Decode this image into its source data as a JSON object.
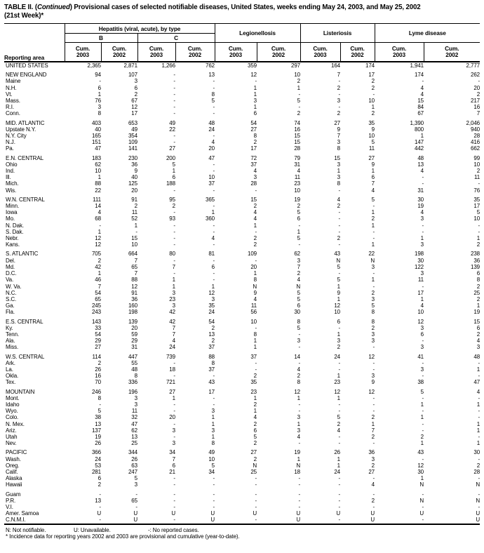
{
  "title": {
    "part1": "TABLE II. (",
    "continued": "Continued",
    "part2": ") Provisional cases of selected notifiable diseases, United States, weeks ending May 24, 2003, and May 25, 2002",
    "line2": "(21st Week)*"
  },
  "header": {
    "reporting_area": "Reporting area",
    "hepatitis_group": "Hepatitis (viral, acute), by type",
    "hep_b": "B",
    "hep_c": "C",
    "legionellosis": "Legionellosis",
    "listeriosis": "Listeriosis",
    "lyme_disease": "Lyme disease",
    "cum_label": "Cum.",
    "years": [
      "2003",
      "2002"
    ]
  },
  "table": {
    "sections": [
      {
        "rows": [
          [
            "UNITED STATES",
            "2,365",
            "2,871",
            "1,266",
            "762",
            "359",
            "297",
            "164",
            "174",
            "1,941",
            "2,777"
          ]
        ]
      },
      {
        "rows": [
          [
            "NEW ENGLAND",
            "94",
            "107",
            "-",
            "13",
            "12",
            "10",
            "7",
            "17",
            "174",
            "262"
          ],
          [
            "Maine",
            "-",
            "3",
            "-",
            "-",
            "-",
            "2",
            "-",
            "2",
            "-",
            "-"
          ],
          [
            "N.H.",
            "6",
            "6",
            "-",
            "-",
            "1",
            "1",
            "2",
            "2",
            "4",
            "20"
          ],
          [
            "Vt.",
            "1",
            "2",
            "-",
            "8",
            "1",
            "-",
            "-",
            "-",
            "4",
            "2"
          ],
          [
            "Mass.",
            "76",
            "67",
            "-",
            "5",
            "3",
            "5",
            "3",
            "10",
            "15",
            "217"
          ],
          [
            "R.I.",
            "3",
            "12",
            "-",
            "-",
            "1",
            "-",
            "-",
            "1",
            "84",
            "16"
          ],
          [
            "Conn.",
            "8",
            "17",
            "-",
            "-",
            "6",
            "2",
            "2",
            "2",
            "67",
            "7"
          ]
        ]
      },
      {
        "rows": [
          [
            "MID. ATLANTIC",
            "403",
            "653",
            "49",
            "48",
            "54",
            "74",
            "27",
            "35",
            "1,390",
            "2,046"
          ],
          [
            "Upstate N.Y.",
            "40",
            "49",
            "22",
            "24",
            "27",
            "16",
            "9",
            "9",
            "800",
            "940"
          ],
          [
            "N.Y. City",
            "165",
            "354",
            "-",
            "-",
            "8",
            "15",
            "7",
            "10",
            "1",
            "28"
          ],
          [
            "N.J.",
            "151",
            "109",
            "-",
            "4",
            "2",
            "15",
            "3",
            "5",
            "147",
            "416"
          ],
          [
            "Pa.",
            "47",
            "141",
            "27",
            "20",
            "17",
            "28",
            "8",
            "11",
            "442",
            "662"
          ]
        ]
      },
      {
        "rows": [
          [
            "E.N. CENTRAL",
            "183",
            "230",
            "200",
            "47",
            "72",
            "79",
            "15",
            "27",
            "48",
            "99"
          ],
          [
            "Ohio",
            "62",
            "36",
            "5",
            "-",
            "37",
            "31",
            "3",
            "9",
            "13",
            "10"
          ],
          [
            "Ind.",
            "10",
            "9",
            "1",
            "-",
            "4",
            "4",
            "1",
            "1",
            "4",
            "2"
          ],
          [
            "Ill.",
            "1",
            "40",
            "6",
            "10",
            "3",
            "11",
            "3",
            "6",
            "-",
            "11"
          ],
          [
            "Mich.",
            "88",
            "125",
            "188",
            "37",
            "28",
            "23",
            "8",
            "7",
            "-",
            "-"
          ],
          [
            "Wis.",
            "22",
            "20",
            "-",
            "-",
            "-",
            "10",
            "-",
            "4",
            "31",
            "76"
          ]
        ]
      },
      {
        "rows": [
          [
            "W.N. CENTRAL",
            "111",
            "91",
            "95",
            "365",
            "15",
            "19",
            "4",
            "5",
            "30",
            "35"
          ],
          [
            "Minn.",
            "14",
            "2",
            "2",
            "-",
            "2",
            "2",
            "2",
            "-",
            "19",
            "17"
          ],
          [
            "Iowa",
            "4",
            "11",
            "-",
            "1",
            "4",
            "5",
            "-",
            "1",
            "4",
            "5"
          ],
          [
            "Mo.",
            "68",
            "52",
            "93",
            "360",
            "4",
            "6",
            "-",
            "2",
            "3",
            "10"
          ],
          [
            "N. Dak.",
            "-",
            "1",
            "-",
            "-",
            "1",
            "-",
            "-",
            "1",
            "-",
            "-"
          ],
          [
            "S. Dak.",
            "1",
            "-",
            "-",
            "-",
            "-",
            "1",
            "-",
            "-",
            "-",
            "-"
          ],
          [
            "Nebr.",
            "12",
            "15",
            "-",
            "4",
            "2",
            "5",
            "2",
            "-",
            "1",
            "1"
          ],
          [
            "Kans.",
            "12",
            "10",
            "-",
            "-",
            "2",
            "-",
            "-",
            "1",
            "3",
            "2"
          ]
        ]
      },
      {
        "rows": [
          [
            "S. ATLANTIC",
            "705",
            "664",
            "80",
            "81",
            "109",
            "62",
            "43",
            "22",
            "198",
            "238"
          ],
          [
            "Del.",
            "2",
            "7",
            "-",
            "-",
            "-",
            "3",
            "N",
            "N",
            "30",
            "36"
          ],
          [
            "Md.",
            "42",
            "65",
            "7",
            "6",
            "20",
            "7",
            "5",
            "3",
            "122",
            "139"
          ],
          [
            "D.C.",
            "1",
            "7",
            "-",
            "-",
            "1",
            "2",
            "-",
            "-",
            "3",
            "6"
          ],
          [
            "Va.",
            "46",
            "88",
            "1",
            "-",
            "8",
            "4",
            "5",
            "1",
            "11",
            "8"
          ],
          [
            "W. Va.",
            "7",
            "12",
            "1",
            "1",
            "N",
            "N",
            "1",
            "-",
            "-",
            "2"
          ],
          [
            "N.C.",
            "54",
            "91",
            "3",
            "12",
            "9",
            "5",
            "9",
            "2",
            "17",
            "25"
          ],
          [
            "S.C.",
            "65",
            "36",
            "23",
            "3",
            "4",
            "5",
            "1",
            "3",
            "1",
            "2"
          ],
          [
            "Ga.",
            "245",
            "160",
            "3",
            "35",
            "11",
            "6",
            "12",
            "5",
            "4",
            "1"
          ],
          [
            "Fla.",
            "243",
            "198",
            "42",
            "24",
            "56",
            "30",
            "10",
            "8",
            "10",
            "19"
          ]
        ]
      },
      {
        "rows": [
          [
            "E.S. CENTRAL",
            "143",
            "139",
            "42",
            "54",
            "10",
            "8",
            "6",
            "8",
            "12",
            "15"
          ],
          [
            "Ky.",
            "33",
            "20",
            "7",
            "2",
            "-",
            "5",
            "-",
            "2",
            "3",
            "6"
          ],
          [
            "Tenn.",
            "54",
            "59",
            "7",
            "13",
            "8",
            "-",
            "1",
            "3",
            "6",
            "2"
          ],
          [
            "Ala.",
            "29",
            "29",
            "4",
            "2",
            "1",
            "3",
            "3",
            "3",
            "-",
            "4"
          ],
          [
            "Miss.",
            "27",
            "31",
            "24",
            "37",
            "1",
            "-",
            "2",
            "-",
            "3",
            "3"
          ]
        ]
      },
      {
        "rows": [
          [
            "W.S. CENTRAL",
            "114",
            "447",
            "739",
            "88",
            "37",
            "14",
            "24",
            "12",
            "41",
            "48"
          ],
          [
            "Ark.",
            "2",
            "55",
            "-",
            "8",
            "-",
            "-",
            "-",
            "-",
            "-",
            "-"
          ],
          [
            "La.",
            "26",
            "48",
            "18",
            "37",
            "-",
            "4",
            "-",
            "-",
            "3",
            "1"
          ],
          [
            "Okla.",
            "16",
            "8",
            "-",
            "-",
            "2",
            "2",
            "1",
            "3",
            "-",
            "-"
          ],
          [
            "Tex.",
            "70",
            "336",
            "721",
            "43",
            "35",
            "8",
            "23",
            "9",
            "38",
            "47"
          ]
        ]
      },
      {
        "rows": [
          [
            "MOUNTAIN",
            "246",
            "196",
            "27",
            "17",
            "23",
            "12",
            "12",
            "12",
            "5",
            "4"
          ],
          [
            "Mont.",
            "8",
            "3",
            "1",
            "-",
            "1",
            "1",
            "1",
            "-",
            "-",
            "-"
          ],
          [
            "Idaho",
            "-",
            "3",
            "-",
            "-",
            "2",
            "-",
            "-",
            "-",
            "1",
            "1"
          ],
          [
            "Wyo.",
            "5",
            "11",
            "-",
            "3",
            "1",
            "-",
            "-",
            "-",
            "-",
            "-"
          ],
          [
            "Colo.",
            "38",
            "32",
            "20",
            "1",
            "4",
            "3",
            "5",
            "2",
            "1",
            "-"
          ],
          [
            "N. Mex.",
            "13",
            "47",
            "-",
            "1",
            "2",
            "1",
            "2",
            "1",
            "-",
            "1"
          ],
          [
            "Ariz.",
            "137",
            "62",
            "3",
            "3",
            "6",
            "3",
            "4",
            "7",
            "-",
            "1"
          ],
          [
            "Utah",
            "19",
            "13",
            "-",
            "1",
            "5",
            "4",
            "-",
            "2",
            "2",
            "-"
          ],
          [
            "Nev.",
            "26",
            "25",
            "3",
            "8",
            "2",
            "-",
            "-",
            "-",
            "1",
            "1"
          ]
        ]
      },
      {
        "rows": [
          [
            "PACIFIC",
            "366",
            "344",
            "34",
            "49",
            "27",
            "19",
            "26",
            "36",
            "43",
            "30"
          ],
          [
            "Wash.",
            "24",
            "26",
            "7",
            "10",
            "2",
            "1",
            "1",
            "3",
            "-",
            "-"
          ],
          [
            "Oreg.",
            "53",
            "63",
            "6",
            "5",
            "N",
            "N",
            "1",
            "2",
            "12",
            "2"
          ],
          [
            "Calif.",
            "281",
            "247",
            "21",
            "34",
            "25",
            "18",
            "24",
            "27",
            "30",
            "28"
          ],
          [
            "Alaska",
            "6",
            "5",
            "-",
            "-",
            "-",
            "-",
            "-",
            "-",
            "1",
            "-"
          ],
          [
            "Hawaii",
            "2",
            "3",
            "-",
            "-",
            "-",
            "-",
            "-",
            "4",
            "N",
            "N"
          ]
        ]
      },
      {
        "rows": [
          [
            "Guam",
            "-",
            "-",
            "-",
            "-",
            "-",
            "-",
            "-",
            "-",
            "-",
            "-"
          ],
          [
            "P.R.",
            "13",
            "65",
            "-",
            "-",
            "-",
            "-",
            "-",
            "2",
            "N",
            "N"
          ],
          [
            "V.I.",
            "-",
            "-",
            "-",
            "-",
            "-",
            "-",
            "-",
            "-",
            "-",
            "-"
          ],
          [
            "Amer. Samoa",
            "U",
            "U",
            "U",
            "U",
            "U",
            "U",
            "U",
            "U",
            "U",
            "U"
          ],
          [
            "C.N.M.I.",
            "-",
            "U",
            "-",
            "U",
            "-",
            "U",
            "-",
            "U",
            "-",
            "U"
          ]
        ]
      }
    ]
  },
  "footnotes": {
    "n": "N: Not notifiable.",
    "u": "U: Unavailable.",
    "dash": "-: No reported cases.",
    "incidence": "* Incidence data for reporting years 2002 and 2003 are provisional and cumulative (year-to-date)."
  }
}
